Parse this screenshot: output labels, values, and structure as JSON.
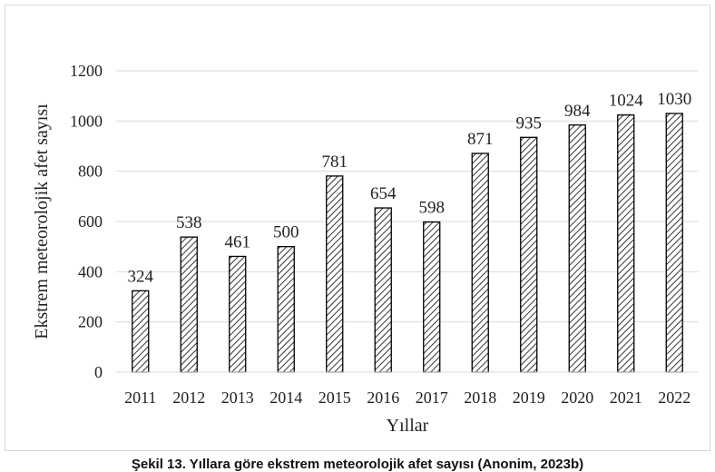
{
  "chart_data": {
    "type": "bar",
    "categories": [
      "2011",
      "2012",
      "2013",
      "2014",
      "2015",
      "2016",
      "2017",
      "2018",
      "2019",
      "2020",
      "2021",
      "2022"
    ],
    "values": [
      324,
      538,
      461,
      500,
      781,
      654,
      598,
      871,
      935,
      984,
      1024,
      1030
    ],
    "xlabel": "Yıllar",
    "ylabel": "Ekstrem meteorolojik afet sayısı",
    "ylim": [
      0,
      1200
    ],
    "yticks": [
      0,
      200,
      400,
      600,
      800,
      1000,
      1200
    ],
    "grid": true,
    "bar_fill": "diagonal hatch",
    "colors": {
      "bar_stroke": "#000000",
      "grid": "#d9d9d9",
      "hatch": "#333333"
    }
  },
  "caption": "Şekil 13. Yıllara göre ekstrem meteorolojik afet sayısı (Anonim, 2023b)"
}
